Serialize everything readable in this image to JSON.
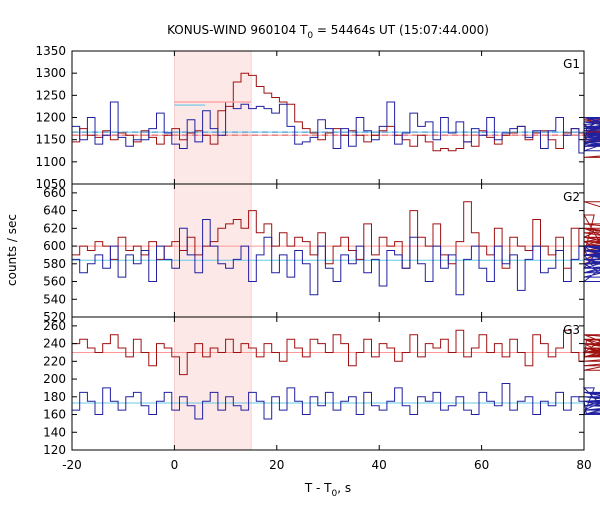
{
  "chart_data": {
    "type": "line",
    "title": {
      "prefix": "KONUS-WIND 960104 T",
      "sub": "0",
      "suffix": " = 54464s UT (15:07:44.000)"
    },
    "xlabel": {
      "prefix": "T - T",
      "sub": "0",
      "suffix": ", s"
    },
    "ylabel": "counts / sec",
    "xlim": [
      -20,
      80
    ],
    "xticks": [
      -20,
      0,
      20,
      40,
      60,
      80
    ],
    "xtick_labels": [
      "-20",
      "0",
      "20",
      "40",
      "60",
      "80"
    ],
    "highlight_interval": [
      0,
      15
    ],
    "bin_width": 1.5,
    "colors": {
      "red": "#a01010",
      "blue": "#2020a0",
      "pink": "#ff9999",
      "cyan": "#66c8e8",
      "highlight": "#fde8e8"
    },
    "panels": [
      {
        "label": "G1",
        "ylim": [
          1050,
          1350
        ],
        "yticks": [
          1050,
          1100,
          1150,
          1200,
          1250,
          1300,
          1350
        ],
        "ytick_labels": [
          "1050",
          "1100",
          "1150",
          "1200",
          "1250",
          "1300",
          "1350"
        ],
        "series": [
          {
            "color": "red",
            "values": [
              1145,
              1175,
              1160,
              1155,
              1170,
              1150,
              1165,
              1160,
              1145,
              1170,
              1155,
              1140,
              1160,
              1175,
              1150,
              1165,
              1170,
              1160,
              1140,
              1215,
              1225,
              1280,
              1300,
              1295,
              1270,
              1255,
              1245,
              1235,
              1230,
              1190,
              1175,
              1165,
              1150,
              1165,
              1175,
              1160,
              1170,
              1160,
              1145,
              1160,
              1170,
              1180,
              1160,
              1150,
              1135,
              1160,
              1145,
              1125,
              1130,
              1125,
              1130,
              1145,
              1135,
              1170,
              1155,
              1140,
              1160,
              1165,
              1180,
              1150,
              1165,
              1170,
              1150,
              1130,
              1165,
              1175,
              1165,
              1150,
              1165,
              1170,
              1160,
              1180,
              1170,
              1160,
              1175,
              1195,
              1165,
              1150,
              1170,
              1135,
              1160,
              1150,
              1170,
              1160,
              1175,
              1190,
              1160,
              1145,
              1180,
              1175,
              1160,
              1165,
              1110,
              1150,
              1170,
              1160,
              1180,
              1160,
              1145,
              1170,
              1165
            ]
          },
          {
            "color": "blue",
            "values": [
              1180,
              1150,
              1200,
              1140,
              1160,
              1235,
              1155,
              1135,
              1150,
              1150,
              1175,
              1210,
              1165,
              1140,
              1130,
              1195,
              1145,
              1215,
              1175,
              1160,
              1235,
              1220,
              1230,
              1220,
              1225,
              1220,
              1210,
              1230,
              1180,
              1140,
              1145,
              1155,
              1195,
              1175,
              1130,
              1175,
              1135,
              1200,
              1170,
              1150,
              1180,
              1235,
              1140,
              1165,
              1210,
              1180,
              1190,
              1150,
              1200,
              1165,
              1190,
              1145,
              1175,
              1160,
              1200,
              1150,
              1165,
              1175,
              1180,
              1155,
              1170,
              1130,
              1170,
              1200,
              1160,
              1175,
              1120,
              1175,
              1185,
              1155,
              1165,
              1150,
              1140,
              1175,
              1200,
              1155,
              1145,
              1125,
              1190,
              1155,
              1200,
              1135,
              1170,
              1200,
              1135,
              1165,
              1135,
              1190,
              1150,
              1175,
              1200,
              1165,
              1135,
              1160,
              1200,
              1155,
              1180,
              1150,
              1200,
              1160
            ]
          }
        ],
        "levels": [
          {
            "color": "red",
            "value": 1160,
            "dashed": true
          },
          {
            "color": "blue",
            "value": 1167,
            "dashed": true
          },
          {
            "color": "pink",
            "value": 1160,
            "dashed": false
          },
          {
            "color": "cyan",
            "value": 1167,
            "dashed": false
          }
        ],
        "step_levels": [
          {
            "color": "pink",
            "x0": 0,
            "x1": 15,
            "value": 1235
          },
          {
            "color": "cyan",
            "x0": 0,
            "x1": 6,
            "value": 1228
          }
        ]
      },
      {
        "label": "G2",
        "ylim": [
          520,
          670
        ],
        "yticks": [
          520,
          540,
          560,
          580,
          600,
          620,
          640,
          660
        ],
        "ytick_labels": [
          "520",
          "540",
          "560",
          "580",
          "600",
          "620",
          "640",
          "660"
        ],
        "series": [
          {
            "color": "red",
            "values": [
              590,
              600,
              595,
              605,
              600,
              585,
              610,
              595,
              600,
              590,
              605,
              585,
              600,
              605,
              595,
              610,
              590,
              600,
              605,
              620,
              625,
              630,
              620,
              640,
              615,
              625,
              600,
              615,
              600,
              610,
              605,
              590,
              615,
              580,
              600,
              610,
              595,
              585,
              625,
              590,
              610,
              600,
              605,
              575,
              640,
              610,
              600,
              625,
              590,
              580,
              605,
              650,
              615,
              600,
              590,
              620,
              575,
              610,
              600,
              595,
              630,
              600,
              590,
              610,
              575,
              620,
              600,
              590,
              635,
              600,
              605,
              585,
              600,
              620,
              595,
              580,
              610,
              650,
              620,
              600,
              590,
              605,
              625,
              610,
              580,
              600,
              595,
              620,
              600,
              605,
              590,
              600,
              615,
              580,
              600,
              610,
              595,
              600,
              590,
              605
            ]
          },
          {
            "color": "blue",
            "values": [
              585,
              570,
              580,
              590,
              575,
              600,
              565,
              590,
              580,
              595,
              560,
              600,
              585,
              575,
              620,
              590,
              570,
              630,
              600,
              580,
              575,
              585,
              600,
              560,
              590,
              610,
              570,
              590,
              565,
              595,
              580,
              545,
              600,
              575,
              560,
              590,
              580,
              600,
              570,
              585,
              555,
              595,
              590,
              575,
              610,
              580,
              560,
              600,
              575,
              590,
              545,
              585,
              600,
              575,
              560,
              600,
              580,
              590,
              550,
              585,
              600,
              570,
              575,
              595,
              560,
              585,
              600,
              590,
              575,
              600,
              580,
              560,
              595,
              585,
              570,
              590,
              575,
              600,
              580,
              585,
              565,
              595,
              590,
              580,
              600,
              575,
              585,
              590,
              570,
              600,
              585,
              580,
              595,
              575,
              590,
              600,
              580,
              575,
              595,
              585
            ]
          }
        ],
        "levels": [
          {
            "color": "pink",
            "value": 600,
            "dashed": false
          },
          {
            "color": "cyan",
            "value": 584,
            "dashed": false
          }
        ],
        "step_levels": []
      },
      {
        "label": "G3",
        "ylim": [
          120,
          270
        ],
        "yticks": [
          120,
          140,
          160,
          180,
          200,
          220,
          240,
          260
        ],
        "ytick_labels": [
          "120",
          "140",
          "160",
          "180",
          "200",
          "220",
          "240",
          "260"
        ],
        "series": [
          {
            "color": "red",
            "values": [
              240,
              245,
              235,
              230,
              240,
              250,
              235,
              225,
              245,
              230,
              215,
              240,
              235,
              225,
              205,
              230,
              240,
              225,
              235,
              230,
              245,
              230,
              240,
              235,
              225,
              240,
              230,
              220,
              245,
              235,
              225,
              245,
              240,
              230,
              250,
              240,
              215,
              230,
              245,
              225,
              240,
              235,
              220,
              230,
              250,
              225,
              240,
              235,
              245,
              230,
              255,
              225,
              235,
              250,
              230,
              240,
              225,
              245,
              230,
              215,
              250,
              240,
              225,
              235,
              255,
              230,
              220,
              245,
              240,
              230,
              250,
              235,
              225,
              240,
              230,
              245,
              225,
              240,
              235,
              220,
              230,
              245,
              235,
              210,
              240,
              225,
              250,
              235,
              230,
              240,
              225,
              245,
              230,
              215,
              240,
              235,
              230,
              245,
              225,
              240
            ]
          },
          {
            "color": "blue",
            "values": [
              165,
              185,
              175,
              160,
              190,
              175,
              165,
              180,
              185,
              170,
              160,
              175,
              185,
              165,
              180,
              170,
              155,
              175,
              185,
              165,
              180,
              170,
              165,
              185,
              175,
              155,
              180,
              165,
              190,
              175,
              160,
              180,
              170,
              185,
              165,
              175,
              180,
              160,
              185,
              170,
              165,
              175,
              190,
              170,
              160,
              180,
              175,
              185,
              165,
              170,
              180,
              165,
              160,
              185,
              175,
              170,
              195,
              165,
              175,
              180,
              160,
              175,
              170,
              185,
              165,
              180,
              175,
              160,
              190,
              170,
              175,
              165,
              185,
              175,
              160,
              180,
              170,
              185,
              165,
              175,
              180,
              165,
              175,
              160,
              185,
              175,
              170,
              165,
              180,
              175,
              185,
              165,
              175,
              180,
              170,
              165,
              185,
              175,
              160,
              180
            ]
          }
        ],
        "levels": [
          {
            "color": "pink",
            "value": 230,
            "dashed": false
          },
          {
            "color": "cyan",
            "value": 173,
            "dashed": false
          }
        ],
        "step_levels": []
      }
    ]
  }
}
